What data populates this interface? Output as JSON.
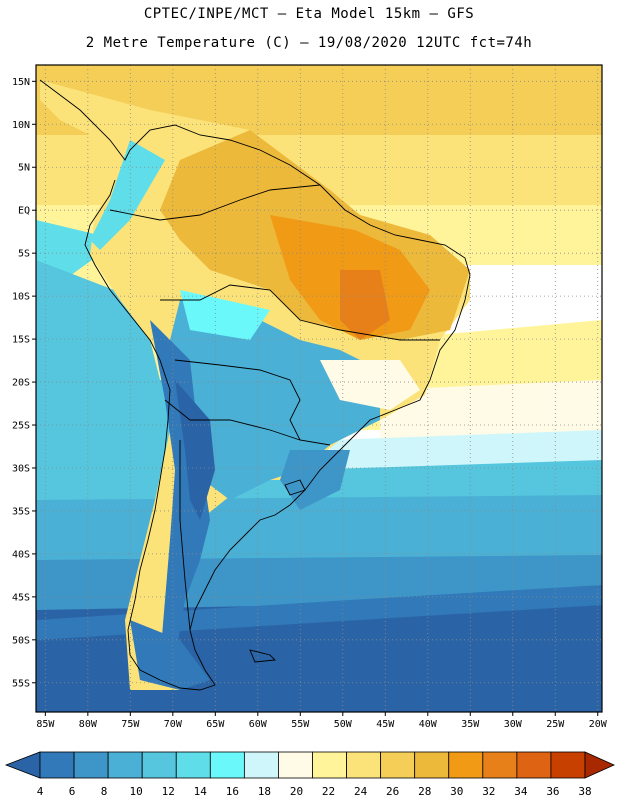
{
  "title_line1": "CPTEC/INPE/MCT –  Eta Model 15km – GFS",
  "title_line2": "2 Metre Temperature (C) – 19/08/2020 12UTC fct=74h",
  "lat_ticks": [
    {
      "label": "15N",
      "lat": 15
    },
    {
      "label": "10N",
      "lat": 10
    },
    {
      "label": "5N",
      "lat": 5
    },
    {
      "label": "EQ",
      "lat": 0
    },
    {
      "label": "5S",
      "lat": -5
    },
    {
      "label": "10S",
      "lat": -10
    },
    {
      "label": "15S",
      "lat": -15
    },
    {
      "label": "20S",
      "lat": -20
    },
    {
      "label": "25S",
      "lat": -25
    },
    {
      "label": "30S",
      "lat": -30
    },
    {
      "label": "35S",
      "lat": -35
    },
    {
      "label": "40S",
      "lat": -40
    },
    {
      "label": "45S",
      "lat": -45
    },
    {
      "label": "50S",
      "lat": -50
    },
    {
      "label": "55S",
      "lat": -55
    }
  ],
  "lon_ticks": [
    {
      "label": "85W",
      "lon": -85
    },
    {
      "label": "80W",
      "lon": -80
    },
    {
      "label": "75W",
      "lon": -75
    },
    {
      "label": "70W",
      "lon": -70
    },
    {
      "label": "65W",
      "lon": -65
    },
    {
      "label": "60W",
      "lon": -60
    },
    {
      "label": "55W",
      "lon": -55
    },
    {
      "label": "50W",
      "lon": -50
    },
    {
      "label": "45W",
      "lon": -45
    },
    {
      "label": "40W",
      "lon": -40
    },
    {
      "label": "35W",
      "lon": -35
    },
    {
      "label": "30W",
      "lon": -30
    },
    {
      "label": "25W",
      "lon": -25
    },
    {
      "label": "20W",
      "lon": -20
    }
  ],
  "colorbar": {
    "labels": [
      "4",
      "6",
      "8",
      "10",
      "12",
      "14",
      "16",
      "18",
      "20",
      "22",
      "24",
      "26",
      "28",
      "30",
      "32",
      "34",
      "36",
      "38"
    ],
    "colors": [
      "#2b64a6",
      "#3179b8",
      "#3d95c8",
      "#4bb0d6",
      "#55c6de",
      "#5fdde8",
      "#6af8fb",
      "#cff7fb",
      "#fffbe6",
      "#fff49a",
      "#fbe37a",
      "#f5ce57",
      "#edb93b",
      "#f09a16",
      "#e8801a",
      "#de6312",
      "#c74000",
      "#a82800"
    ]
  }
}
